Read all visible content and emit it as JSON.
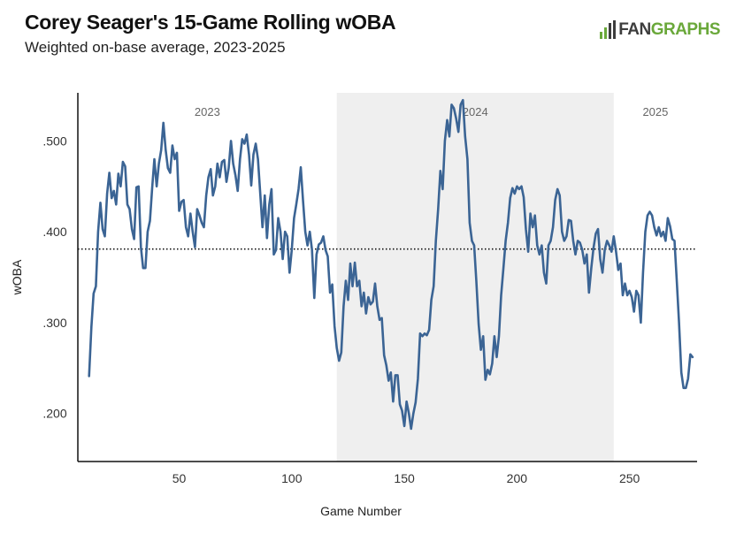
{
  "header": {
    "title": "Corey Seager's 15-Game Rolling wOBA",
    "subtitle": "Weighted on-base average, 2023-2025"
  },
  "logo": {
    "prefix": "FAN",
    "suffix": "GRAPHS"
  },
  "colors": {
    "line": "#3b6494",
    "shade": "#efefef",
    "logo_green": "#6aa83a"
  },
  "chart_data": {
    "type": "line",
    "title": "Corey Seager's 15-Game Rolling wOBA",
    "subtitle": "Weighted on-base average, 2023-2025",
    "xlabel": "Game Number",
    "ylabel": "wOBA",
    "xlim": [
      5,
      280
    ],
    "ylim": [
      0.147,
      0.553
    ],
    "x_ticks": [
      50,
      100,
      150,
      200,
      250
    ],
    "y_ticks": [
      0.2,
      0.3,
      0.4,
      0.5
    ],
    "y_tick_labels": [
      ".200",
      ".300",
      ".400",
      ".500"
    ],
    "reference_line": {
      "value": 0.381,
      "style": "dotted"
    },
    "seasons": [
      {
        "label": "2023",
        "start": 5,
        "end": 120,
        "shaded": false
      },
      {
        "label": "2024",
        "start": 120,
        "end": 243,
        "shaded": true
      },
      {
        "label": "2025",
        "start": 243,
        "end": 280,
        "shaded": false
      }
    ],
    "series": [
      {
        "name": "15-Game Rolling wOBA",
        "points": [
          [
            10,
            0.241
          ],
          [
            11,
            0.295
          ],
          [
            12,
            0.332
          ],
          [
            13,
            0.34
          ],
          [
            14,
            0.4
          ],
          [
            15,
            0.432
          ],
          [
            16,
            0.403
          ],
          [
            17,
            0.395
          ],
          [
            18,
            0.442
          ],
          [
            19,
            0.465
          ],
          [
            20,
            0.437
          ],
          [
            21,
            0.445
          ],
          [
            22,
            0.43
          ],
          [
            23,
            0.464
          ],
          [
            24,
            0.45
          ],
          [
            25,
            0.477
          ],
          [
            26,
            0.472
          ],
          [
            27,
            0.43
          ],
          [
            28,
            0.425
          ],
          [
            29,
            0.403
          ],
          [
            30,
            0.392
          ],
          [
            31,
            0.449
          ],
          [
            32,
            0.45
          ],
          [
            33,
            0.383
          ],
          [
            34,
            0.36
          ],
          [
            35,
            0.36
          ],
          [
            36,
            0.4
          ],
          [
            37,
            0.412
          ],
          [
            38,
            0.448
          ],
          [
            39,
            0.48
          ],
          [
            40,
            0.45
          ],
          [
            41,
            0.475
          ],
          [
            42,
            0.49
          ],
          [
            43,
            0.52
          ],
          [
            44,
            0.49
          ],
          [
            45,
            0.47
          ],
          [
            46,
            0.465
          ],
          [
            47,
            0.495
          ],
          [
            48,
            0.48
          ],
          [
            49,
            0.487
          ],
          [
            50,
            0.423
          ],
          [
            51,
            0.433
          ],
          [
            52,
            0.435
          ],
          [
            53,
            0.405
          ],
          [
            54,
            0.395
          ],
          [
            55,
            0.42
          ],
          [
            56,
            0.4
          ],
          [
            57,
            0.383
          ],
          [
            58,
            0.425
          ],
          [
            59,
            0.418
          ],
          [
            60,
            0.41
          ],
          [
            61,
            0.405
          ],
          [
            62,
            0.44
          ],
          [
            63,
            0.46
          ],
          [
            64,
            0.469
          ],
          [
            65,
            0.44
          ],
          [
            66,
            0.45
          ],
          [
            67,
            0.475
          ],
          [
            68,
            0.46
          ],
          [
            69,
            0.477
          ],
          [
            70,
            0.479
          ],
          [
            71,
            0.455
          ],
          [
            72,
            0.47
          ],
          [
            73,
            0.5
          ],
          [
            74,
            0.475
          ],
          [
            75,
            0.462
          ],
          [
            76,
            0.445
          ],
          [
            77,
            0.48
          ],
          [
            78,
            0.502
          ],
          [
            79,
            0.497
          ],
          [
            80,
            0.507
          ],
          [
            81,
            0.485
          ],
          [
            82,
            0.451
          ],
          [
            83,
            0.485
          ],
          [
            84,
            0.497
          ],
          [
            85,
            0.48
          ],
          [
            86,
            0.442
          ],
          [
            87,
            0.405
          ],
          [
            88,
            0.44
          ],
          [
            89,
            0.393
          ],
          [
            90,
            0.43
          ],
          [
            91,
            0.447
          ],
          [
            92,
            0.375
          ],
          [
            93,
            0.38
          ],
          [
            94,
            0.415
          ],
          [
            95,
            0.4
          ],
          [
            96,
            0.37
          ],
          [
            97,
            0.4
          ],
          [
            98,
            0.395
          ],
          [
            99,
            0.355
          ],
          [
            100,
            0.38
          ],
          [
            101,
            0.415
          ],
          [
            102,
            0.43
          ],
          [
            103,
            0.447
          ],
          [
            104,
            0.471
          ],
          [
            105,
            0.435
          ],
          [
            106,
            0.4
          ],
          [
            107,
            0.385
          ],
          [
            108,
            0.4
          ],
          [
            109,
            0.38
          ],
          [
            110,
            0.327
          ],
          [
            111,
            0.375
          ],
          [
            112,
            0.386
          ],
          [
            113,
            0.388
          ],
          [
            114,
            0.395
          ],
          [
            115,
            0.38
          ],
          [
            116,
            0.373
          ],
          [
            117,
            0.333
          ],
          [
            118,
            0.342
          ],
          [
            119,
            0.296
          ],
          [
            120,
            0.272
          ],
          [
            121,
            0.258
          ],
          [
            122,
            0.267
          ],
          [
            123,
            0.318
          ],
          [
            124,
            0.346
          ],
          [
            125,
            0.325
          ],
          [
            126,
            0.365
          ],
          [
            127,
            0.34
          ],
          [
            128,
            0.366
          ],
          [
            129,
            0.34
          ],
          [
            130,
            0.346
          ],
          [
            131,
            0.318
          ],
          [
            132,
            0.333
          ],
          [
            133,
            0.31
          ],
          [
            134,
            0.328
          ],
          [
            135,
            0.32
          ],
          [
            136,
            0.323
          ],
          [
            137,
            0.343
          ],
          [
            138,
            0.318
          ],
          [
            139,
            0.303
          ],
          [
            140,
            0.305
          ],
          [
            141,
            0.264
          ],
          [
            142,
            0.253
          ],
          [
            143,
            0.236
          ],
          [
            144,
            0.245
          ],
          [
            145,
            0.213
          ],
          [
            146,
            0.242
          ],
          [
            147,
            0.242
          ],
          [
            148,
            0.21
          ],
          [
            149,
            0.203
          ],
          [
            150,
            0.186
          ],
          [
            151,
            0.213
          ],
          [
            152,
            0.2
          ],
          [
            153,
            0.183
          ],
          [
            154,
            0.2
          ],
          [
            155,
            0.212
          ],
          [
            156,
            0.238
          ],
          [
            157,
            0.288
          ],
          [
            158,
            0.285
          ],
          [
            159,
            0.288
          ],
          [
            160,
            0.286
          ],
          [
            161,
            0.292
          ],
          [
            162,
            0.325
          ],
          [
            163,
            0.34
          ],
          [
            164,
            0.39
          ],
          [
            165,
            0.425
          ],
          [
            166,
            0.467
          ],
          [
            167,
            0.447
          ],
          [
            168,
            0.5
          ],
          [
            169,
            0.523
          ],
          [
            170,
            0.505
          ],
          [
            171,
            0.54
          ],
          [
            172,
            0.536
          ],
          [
            173,
            0.525
          ],
          [
            174,
            0.51
          ],
          [
            175,
            0.54
          ],
          [
            176,
            0.545
          ],
          [
            177,
            0.505
          ],
          [
            178,
            0.48
          ],
          [
            179,
            0.41
          ],
          [
            180,
            0.39
          ],
          [
            181,
            0.385
          ],
          [
            182,
            0.345
          ],
          [
            183,
            0.298
          ],
          [
            184,
            0.27
          ],
          [
            185,
            0.285
          ],
          [
            186,
            0.237
          ],
          [
            187,
            0.248
          ],
          [
            188,
            0.243
          ],
          [
            189,
            0.255
          ],
          [
            190,
            0.285
          ],
          [
            191,
            0.262
          ],
          [
            192,
            0.285
          ],
          [
            193,
            0.33
          ],
          [
            194,
            0.36
          ],
          [
            195,
            0.39
          ],
          [
            196,
            0.41
          ],
          [
            197,
            0.437
          ],
          [
            198,
            0.448
          ],
          [
            199,
            0.442
          ],
          [
            200,
            0.45
          ],
          [
            201,
            0.447
          ],
          [
            202,
            0.45
          ],
          [
            203,
            0.438
          ],
          [
            204,
            0.403
          ],
          [
            205,
            0.378
          ],
          [
            206,
            0.42
          ],
          [
            207,
            0.405
          ],
          [
            208,
            0.418
          ],
          [
            209,
            0.385
          ],
          [
            210,
            0.375
          ],
          [
            211,
            0.385
          ],
          [
            212,
            0.355
          ],
          [
            213,
            0.343
          ],
          [
            214,
            0.385
          ],
          [
            215,
            0.39
          ],
          [
            216,
            0.405
          ],
          [
            217,
            0.435
          ],
          [
            218,
            0.447
          ],
          [
            219,
            0.44
          ],
          [
            220,
            0.4
          ],
          [
            221,
            0.39
          ],
          [
            222,
            0.395
          ],
          [
            223,
            0.413
          ],
          [
            224,
            0.412
          ],
          [
            225,
            0.39
          ],
          [
            226,
            0.375
          ],
          [
            227,
            0.39
          ],
          [
            228,
            0.388
          ],
          [
            229,
            0.38
          ],
          [
            230,
            0.365
          ],
          [
            231,
            0.375
          ],
          [
            232,
            0.333
          ],
          [
            233,
            0.36
          ],
          [
            234,
            0.382
          ],
          [
            235,
            0.398
          ],
          [
            236,
            0.403
          ],
          [
            237,
            0.37
          ],
          [
            238,
            0.355
          ],
          [
            239,
            0.38
          ],
          [
            240,
            0.39
          ],
          [
            241,
            0.385
          ],
          [
            242,
            0.378
          ],
          [
            243,
            0.395
          ],
          [
            244,
            0.378
          ],
          [
            245,
            0.358
          ],
          [
            246,
            0.365
          ],
          [
            247,
            0.33
          ],
          [
            248,
            0.343
          ],
          [
            249,
            0.33
          ],
          [
            250,
            0.335
          ],
          [
            251,
            0.328
          ],
          [
            252,
            0.312
          ],
          [
            253,
            0.335
          ],
          [
            254,
            0.33
          ],
          [
            255,
            0.3
          ],
          [
            256,
            0.355
          ],
          [
            257,
            0.4
          ],
          [
            258,
            0.418
          ],
          [
            259,
            0.422
          ],
          [
            260,
            0.418
          ],
          [
            261,
            0.405
          ],
          [
            262,
            0.396
          ],
          [
            263,
            0.405
          ],
          [
            264,
            0.395
          ],
          [
            265,
            0.4
          ],
          [
            266,
            0.39
          ],
          [
            267,
            0.415
          ],
          [
            268,
            0.406
          ],
          [
            269,
            0.392
          ],
          [
            270,
            0.39
          ],
          [
            271,
            0.345
          ],
          [
            272,
            0.3
          ],
          [
            273,
            0.245
          ],
          [
            274,
            0.228
          ],
          [
            275,
            0.228
          ],
          [
            276,
            0.238
          ],
          [
            277,
            0.265
          ],
          [
            278,
            0.262
          ]
        ]
      }
    ]
  }
}
